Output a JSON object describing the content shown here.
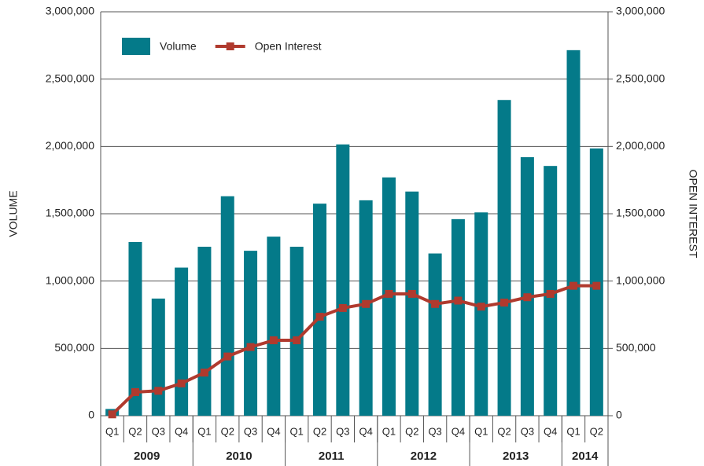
{
  "chart_data": {
    "type": "bar_line",
    "categories": [
      "Q1",
      "Q2",
      "Q3",
      "Q4",
      "Q1",
      "Q2",
      "Q3",
      "Q4",
      "Q1",
      "Q2",
      "Q3",
      "Q4",
      "Q1",
      "Q2",
      "Q3",
      "Q4",
      "Q1",
      "Q2",
      "Q3",
      "Q4",
      "Q1",
      "Q2"
    ],
    "groups": [
      {
        "label": "2009",
        "count": 4
      },
      {
        "label": "2010",
        "count": 4
      },
      {
        "label": "2011",
        "count": 4
      },
      {
        "label": "2012",
        "count": 4
      },
      {
        "label": "2013",
        "count": 4
      },
      {
        "label": "2014",
        "count": 2
      }
    ],
    "series": [
      {
        "name": "Volume",
        "type": "bar",
        "color": "#047a89",
        "values": [
          50000,
          1290000,
          870000,
          1100000,
          1255000,
          1630000,
          1225000,
          1330000,
          1255000,
          1575000,
          2015000,
          1600000,
          1770000,
          1665000,
          1205000,
          1460000,
          1510000,
          2345000,
          1920000,
          1855000,
          2715000,
          1985000
        ]
      },
      {
        "name": "Open Interest",
        "type": "line",
        "color": "#b03a2e",
        "axis": "y2",
        "values": [
          10000,
          175000,
          185000,
          240000,
          320000,
          440000,
          510000,
          560000,
          560000,
          735000,
          800000,
          830000,
          905000,
          905000,
          830000,
          855000,
          810000,
          840000,
          880000,
          905000,
          965000,
          965000
        ]
      }
    ],
    "ylabel": "VOLUME",
    "y2label": "OPEN INTEREST",
    "ylim": [
      0,
      3000000
    ],
    "yticks": [
      0,
      {
        "value": 500000,
        "label": "500,000"
      },
      {
        "value": 1000000,
        "label": "1,000,000"
      },
      {
        "value": 1500000,
        "label": "1,500,000"
      },
      {
        "value": 2000000,
        "label": "2,000,000"
      },
      {
        "value": 2500000,
        "label": "2,500,000"
      },
      {
        "value": 3000000,
        "label": "3,000,000"
      }
    ],
    "y2lim": [
      0,
      3000000
    ],
    "y2ticks": [
      0,
      {
        "value": 500000,
        "label": "500,000"
      },
      {
        "value": 1000000,
        "label": "1,000,000"
      },
      {
        "value": 1500000,
        "label": "1,500,000"
      },
      {
        "value": 2000000,
        "label": "2,000,000"
      },
      {
        "value": 2500000,
        "label": "2,500,000"
      },
      {
        "value": 3000000,
        "label": "3,000,000"
      }
    ],
    "grid": true,
    "legend": "upper left"
  }
}
